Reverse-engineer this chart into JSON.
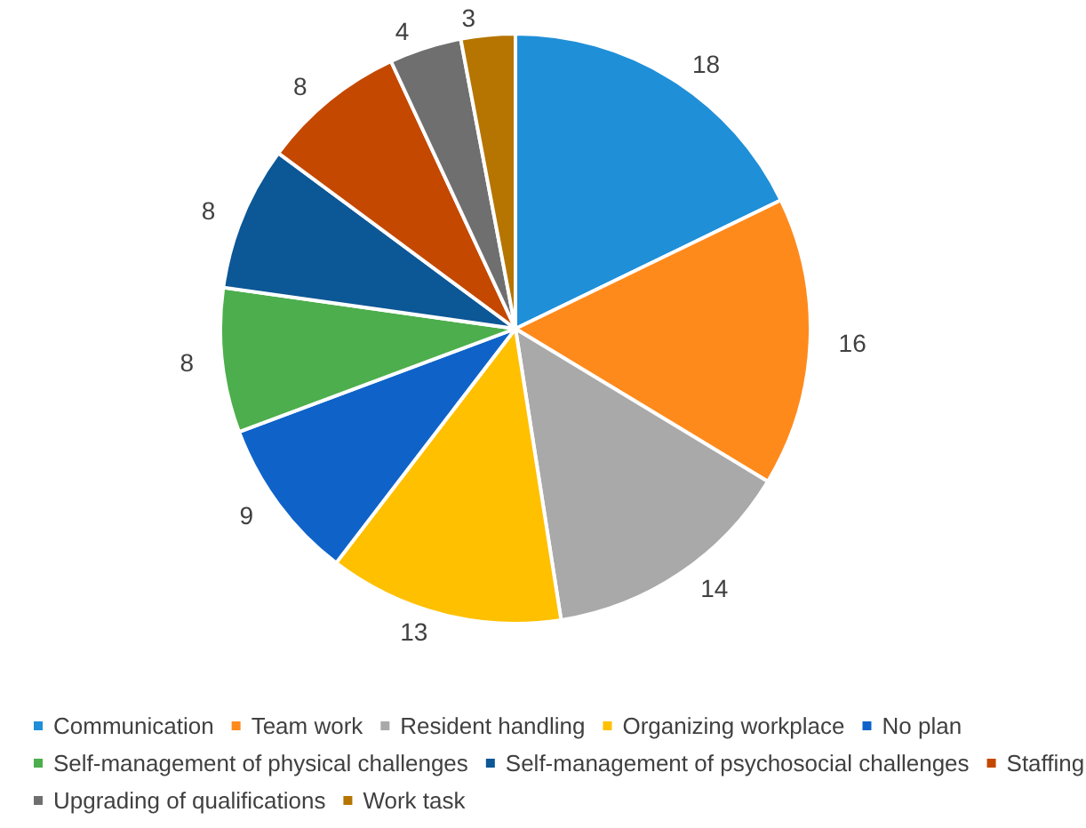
{
  "chart_data": {
    "type": "pie",
    "categories": [
      "Communication",
      "Team work",
      "Resident handling",
      "Organizing workplace",
      "No plan",
      "Self-management of physical challenges",
      "Self-management of psychosocial challenges",
      "Staffing",
      "Upgrading of qualifications",
      "Work task"
    ],
    "values": [
      18,
      16,
      14,
      13,
      9,
      8,
      8,
      8,
      4,
      3
    ],
    "colors": [
      "#1f8fd8",
      "#ff8a1c",
      "#a9a9a9",
      "#ffc000",
      "#0f63c8",
      "#4cae4c",
      "#0c5796",
      "#c44800",
      "#6f6f6f",
      "#b57500"
    ],
    "data_labels": true,
    "legend": "bottom"
  }
}
